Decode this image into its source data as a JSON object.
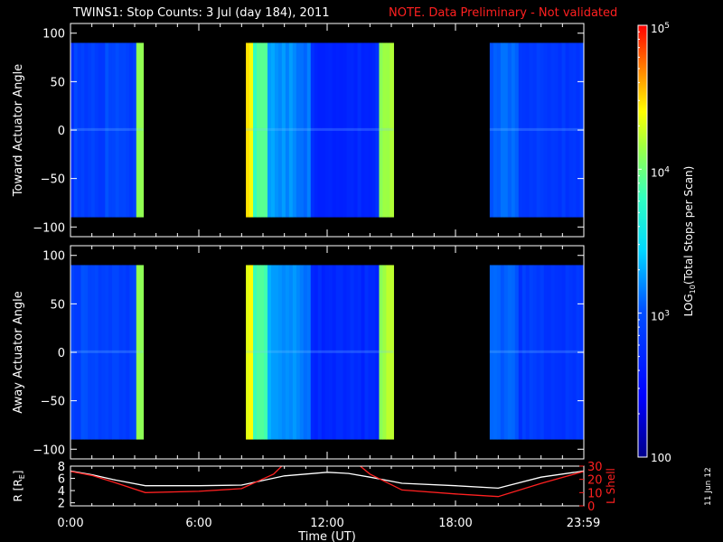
{
  "header": {
    "title": "TWINS1: Stop Counts:  3 Jul (day 184), 2011",
    "note": "NOTE. Data Preliminary - Not validated",
    "note_color": "#ff2020"
  },
  "side_date": "11 Jun 12",
  "chart_data": [
    {
      "type": "heatmap",
      "title": "TWINS1: Stop Counts:  3 Jul (day 184), 2011",
      "ylabel": "Toward Actuator Angle",
      "ylim": [
        -110,
        110
      ],
      "yticks": [
        100,
        50,
        0,
        -50,
        -100
      ],
      "xlim": [
        0,
        24
      ],
      "z_scale": "log",
      "data_blocks_hours": [
        [
          0,
          3.4
        ],
        [
          8.2,
          15.1
        ],
        [
          19.6,
          23.98
        ]
      ],
      "data_angle_range": [
        -90,
        90
      ]
    },
    {
      "type": "heatmap",
      "ylabel": "Away Actuator Angle",
      "ylim": [
        -110,
        110
      ],
      "yticks": [
        100,
        50,
        0,
        -50,
        -100
      ],
      "xlim": [
        0,
        24
      ],
      "z_scale": "log",
      "data_blocks_hours": [
        [
          0,
          3.4
        ],
        [
          8.2,
          15.1
        ],
        [
          19.6,
          23.98
        ]
      ],
      "data_angle_range": [
        -90,
        90
      ]
    },
    {
      "type": "line",
      "ylabel_left": "R [RE]",
      "ylabel_left_parts": [
        "R [R",
        "E",
        "]"
      ],
      "ylabel_right": "L Shell",
      "xlabel": "Time (UT)",
      "xticks": [
        "0:00",
        "6:00",
        "12:00",
        "18:00",
        "23:59"
      ],
      "xtick_hours": [
        0,
        6,
        12,
        18,
        23.98
      ],
      "ylim_left": [
        1.5,
        8
      ],
      "yticks_left": [
        2,
        4,
        6,
        8
      ],
      "ylim_right": [
        0,
        30
      ],
      "yticks_right": [
        0,
        10,
        20,
        30
      ],
      "series": [
        {
          "color": "#ffffff",
          "axis": "left",
          "x": [
            0,
            1,
            2,
            3.5,
            6,
            8,
            10,
            12,
            13,
            14,
            15.5,
            18,
            20,
            22,
            24
          ],
          "y": [
            7.2,
            6.6,
            5.8,
            4.8,
            4.8,
            4.9,
            6.4,
            7.0,
            6.8,
            6.2,
            5.2,
            4.8,
            4.4,
            6.2,
            7.2
          ]
        },
        {
          "color": "#ff2020",
          "axis": "right",
          "x": [
            0,
            1,
            2,
            3.5,
            6,
            8,
            9.5,
            10,
            13.4,
            14,
            15.5,
            18,
            20,
            22,
            24
          ],
          "y": [
            26,
            23,
            18,
            10,
            11,
            13,
            24,
            32,
            32,
            24,
            12,
            9,
            7,
            17,
            26
          ]
        }
      ]
    },
    {
      "type": "heatmap",
      "role": "colorbar",
      "label_parts": [
        "LOG",
        "10",
        "(Total Stops per Scan)"
      ],
      "zlim": [
        100,
        100000
      ],
      "ticks": [
        {
          "value": 100,
          "base": "100",
          "exp": ""
        },
        {
          "value": 1000,
          "base": "10",
          "exp": "3"
        },
        {
          "value": 10000,
          "base": "10",
          "exp": "4"
        },
        {
          "value": 100000,
          "base": "10",
          "exp": "5"
        }
      ]
    }
  ]
}
